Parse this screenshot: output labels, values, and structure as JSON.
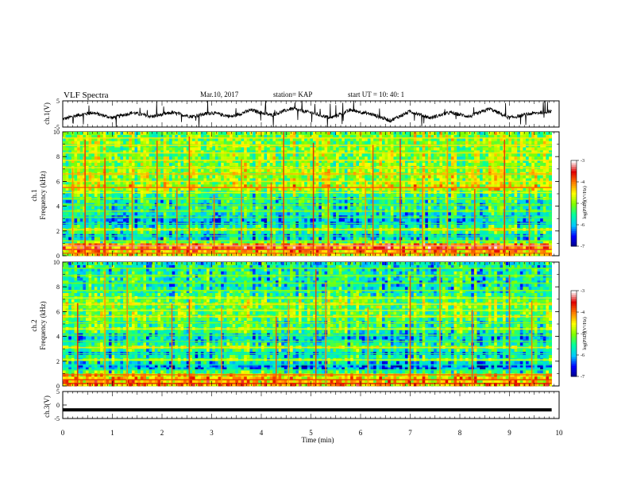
{
  "header": {
    "title": "VLF Spectra",
    "date": "Mar.10, 2017",
    "station": "station= KAP",
    "start": "start  UT =   10: 40: 1"
  },
  "chart_data": [
    {
      "type": "line",
      "panel": "ch1-waveform",
      "ylabel": "ch.1(V)",
      "ylim": [
        -5,
        5
      ],
      "yticks": [
        "5",
        "-5"
      ],
      "xlim": [
        0,
        9.85
      ],
      "envelope_x": [
        0,
        0.3,
        0.6,
        1.0,
        1.4,
        1.8,
        2.2,
        2.6,
        3.0,
        3.4,
        3.8,
        4.2,
        4.6,
        5.0,
        5.4,
        5.8,
        6.2,
        6.6,
        7.0,
        7.4,
        7.8,
        8.2,
        8.6,
        9.0,
        9.4,
        9.8
      ],
      "envelope_y": [
        -2,
        -0.5,
        0.5,
        -1.5,
        0.5,
        -1.0,
        0.5,
        -1.0,
        0.5,
        -1.0,
        1.5,
        -0.5,
        2.0,
        0.5,
        -1.5,
        1.5,
        0.0,
        -2.5,
        1.0,
        -1.5,
        0.5,
        -1.0,
        2.0,
        -1.5,
        0.0,
        1.0
      ]
    },
    {
      "type": "heatmap",
      "panel": "ch1-spectrogram",
      "ylabel_line1": "ch.1",
      "ylabel_line2": "Frequency  (kHz)",
      "ylim": [
        0,
        10
      ],
      "yticks": [
        "0",
        "2",
        "4",
        "6",
        "8",
        "10"
      ],
      "xlim": [
        0,
        9.85
      ],
      "band_freqs_khz": [
        0.2,
        0.5,
        0.8,
        1.2,
        1.6,
        2.1,
        2.6,
        3.1,
        3.6,
        4.1,
        4.6,
        5.1,
        5.5,
        6.0,
        6.6,
        7.1,
        7.7,
        8.3,
        8.9,
        9.5
      ],
      "band_log_psd": [
        -4.5,
        -4.0,
        -3.8,
        -5.5,
        -6.0,
        -5.0,
        -6.0,
        -5.8,
        -5.5,
        -5.6,
        -5.5,
        -5.2,
        -4.5,
        -5.0,
        -4.8,
        -5.0,
        -5.0,
        -5.0,
        -5.0,
        -5.0
      ],
      "burst_times_min": [
        0.2,
        0.45,
        0.85,
        1.4,
        1.9,
        2.3,
        2.55,
        3.05,
        3.6,
        4.2,
        4.45,
        5.05,
        5.35,
        6.1,
        6.25,
        6.8,
        7.25,
        7.75,
        8.3,
        8.9,
        9.4
      ],
      "colorbar": {
        "label": "log(PSD)(V²/Hz)",
        "ticks": [
          "-3",
          "-4",
          "-5",
          "-6",
          "-7"
        ],
        "range": [
          -7,
          -3
        ]
      }
    },
    {
      "type": "heatmap",
      "panel": "ch2-spectrogram",
      "ylabel_line1": "ch.2",
      "ylabel_line2": "Frequency  (kHz)",
      "ylim": [
        0,
        10
      ],
      "yticks": [
        "0",
        "2",
        "4",
        "6",
        "8",
        "10"
      ],
      "xlim": [
        0,
        9.85
      ],
      "band_freqs_khz": [
        0.2,
        0.5,
        0.9,
        1.3,
        1.7,
        2.1,
        2.6,
        3.1,
        3.6,
        4.1,
        4.6,
        5.1,
        5.6,
        6.1,
        6.6,
        7.1,
        7.7,
        8.3,
        8.9,
        9.5
      ],
      "band_log_psd": [
        -4.2,
        -4.3,
        -4.5,
        -6.0,
        -6.2,
        -5.2,
        -6.0,
        -5.0,
        -5.8,
        -5.8,
        -5.2,
        -5.5,
        -5.0,
        -5.2,
        -5.0,
        -5.2,
        -5.5,
        -5.6,
        -5.5,
        -5.6
      ],
      "burst_times_min": [
        0.3,
        0.85,
        1.3,
        2.2,
        2.55,
        3.2,
        4.3,
        4.55,
        5.1,
        5.3,
        6.15,
        7.0,
        7.6,
        8.25,
        9.0,
        9.45
      ],
      "colorbar": {
        "label": "log(PSD)(V²/Hz)",
        "ticks": [
          "-3",
          "-4",
          "-5",
          "-6",
          "-7"
        ],
        "range": [
          -7,
          -3
        ]
      }
    },
    {
      "type": "line",
      "panel": "ch3-waveform",
      "ylabel": "ch.3(V)",
      "ylim": [
        -5,
        5
      ],
      "yticks": [
        "5",
        "0",
        "-5"
      ],
      "xlim": [
        0,
        9.85
      ],
      "x": [
        0,
        9.85
      ],
      "y": [
        -1.8,
        -1.8
      ]
    }
  ],
  "x_axis": {
    "label": "Time  (min)",
    "ticks": [
      "0",
      "1",
      "2",
      "3",
      "4",
      "5",
      "6",
      "7",
      "8",
      "9",
      "10"
    ],
    "range": [
      0,
      10
    ]
  },
  "colors": {
    "colormap": [
      "#000080",
      "#0000ff",
      "#00c8ff",
      "#00ffa0",
      "#80ff00",
      "#ffff00",
      "#ff8000",
      "#e00000",
      "#ffffff"
    ]
  }
}
